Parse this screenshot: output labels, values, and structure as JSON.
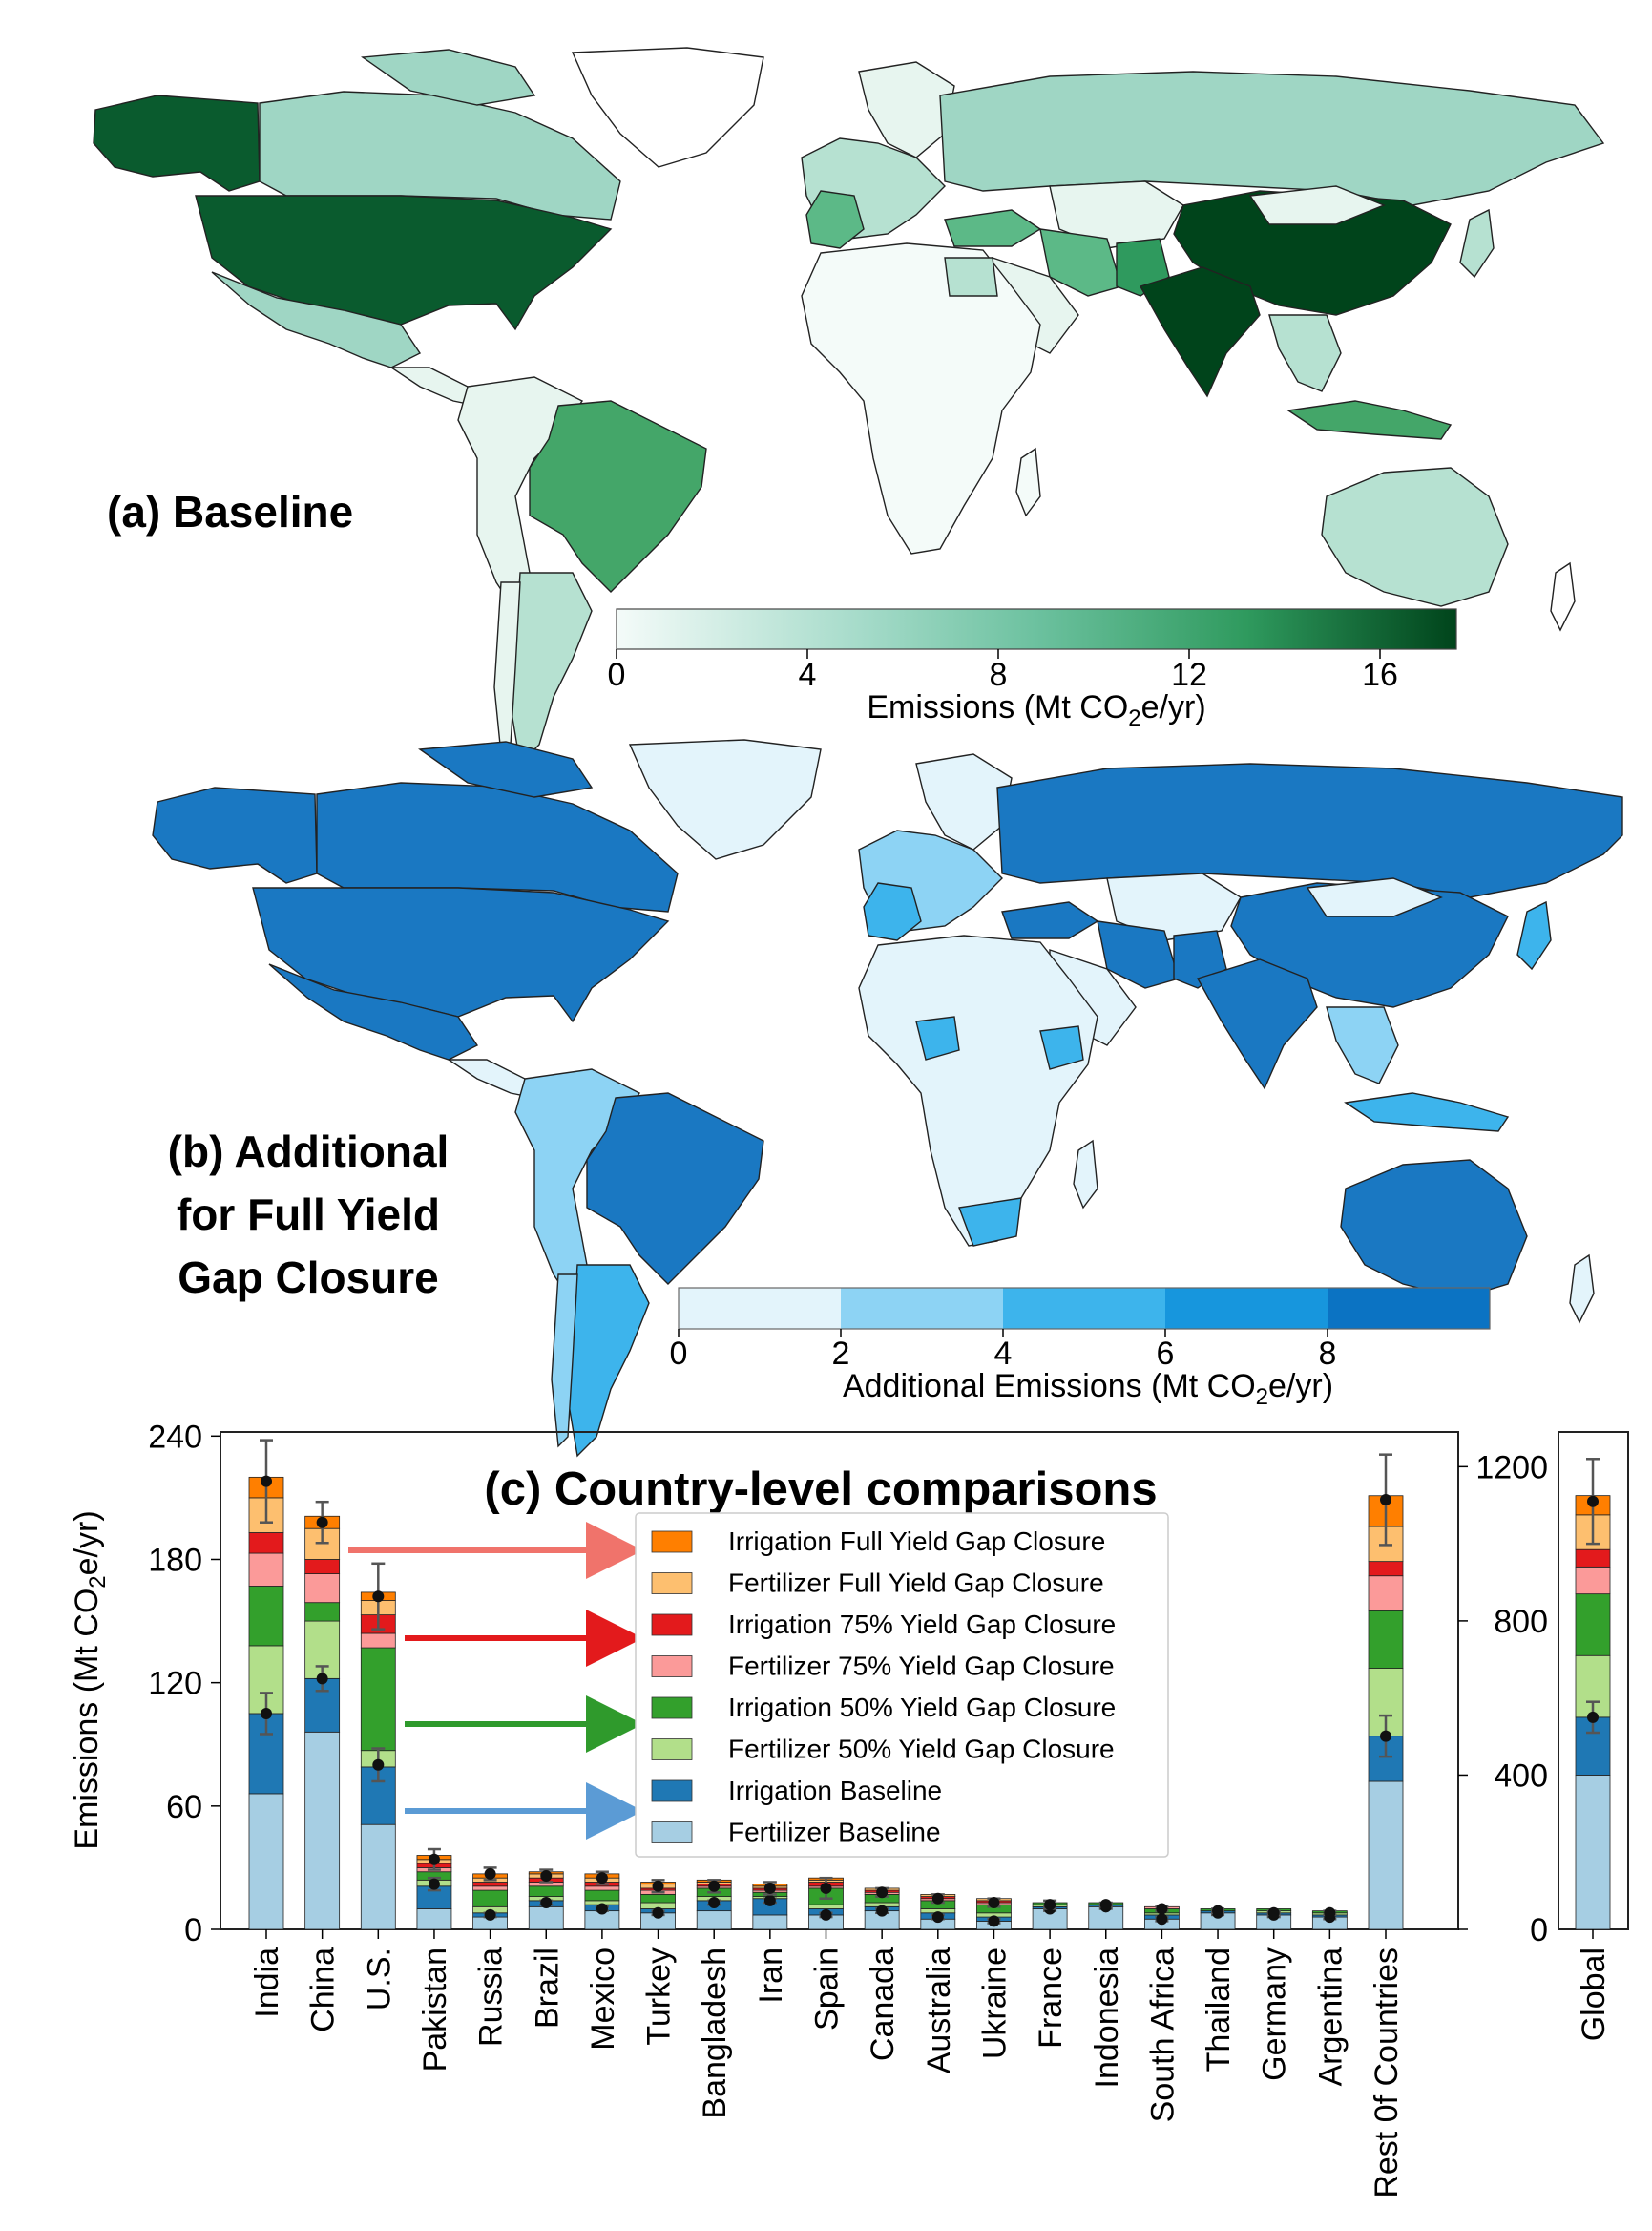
{
  "panel_a": {
    "label": "(a) Baseline",
    "colorbar": {
      "ticks": [
        "0",
        "4",
        "8",
        "12",
        "16"
      ],
      "label_main": "Emissions (Mt CO",
      "label_sub": "2",
      "label_tail": "e/yr)",
      "range": [
        0,
        17.6
      ],
      "colors": [
        "#f4fbf9",
        "#a3dac8",
        "#6cc19f",
        "#2f9a5e",
        "#00441b"
      ]
    }
  },
  "panel_b": {
    "label_lines": [
      "(b) Additional",
      "for Full Yield",
      "Gap Closure"
    ],
    "colorbar": {
      "ticks": [
        "0",
        "2",
        "4",
        "6",
        "8"
      ],
      "label_main": "Additional Emissions (Mt CO",
      "label_sub": "2",
      "label_tail": "e/yr)",
      "bins": [
        {
          "from": 0,
          "to": 2,
          "color": "#e3f4fb"
        },
        {
          "from": 2,
          "to": 4,
          "color": "#8dd3f4"
        },
        {
          "from": 4,
          "to": 6,
          "color": "#3db4ec"
        },
        {
          "from": 6,
          "to": 8,
          "color": "#1796dd"
        },
        {
          "from": 8,
          "to": 10,
          "color": "#0b73c3"
        }
      ]
    }
  },
  "chart_data": {
    "type": "bar",
    "title": "(c) Country-level comparisons",
    "ylabel_main": "Emissions (Mt CO",
    "ylabel_sub": "2",
    "ylabel_tail": "e/yr)",
    "ylim": [
      0,
      242
    ],
    "yticks": [
      "0",
      "60",
      "120",
      "180",
      "240"
    ],
    "categories": [
      "India",
      "China",
      "U.S.",
      "Pakistan",
      "Russia",
      "Brazil",
      "Mexico",
      "Turkey",
      "Bangladesh",
      "Iran",
      "Spain",
      "Canada",
      "Australia",
      "Ukraine",
      "France",
      "Indonesia",
      "South Africa",
      "Thailand",
      "Germany",
      "Argentina",
      "Rest 0f Countries"
    ],
    "series": [
      {
        "name": "Fertilizer Baseline",
        "color": "#a6cee3",
        "values": [
          66,
          96,
          51,
          10,
          6,
          11,
          9,
          8,
          9,
          7,
          7,
          9,
          5,
          4,
          10,
          11,
          5,
          8,
          7,
          6,
          72
        ]
      },
      {
        "name": "Irrigation Baseline",
        "color": "#1f78b4",
        "values": [
          39,
          26,
          28,
          11,
          2,
          3,
          3,
          2,
          5,
          8,
          3,
          2,
          3,
          2,
          1,
          1,
          2,
          1,
          1,
          1,
          22
        ]
      },
      {
        "name": "Fertilizer 50% Yield Gap Closure",
        "color": "#b2df8a",
        "values": [
          33,
          28,
          8,
          3,
          3,
          2,
          2,
          3,
          2,
          1,
          2,
          2,
          2,
          2,
          1,
          0,
          1,
          0,
          1,
          1,
          33
        ]
      },
      {
        "name": "Irrigation 50% Yield Gap Closure",
        "color": "#33a02c",
        "values": [
          29,
          9,
          50,
          4,
          8,
          5,
          5,
          4,
          4,
          2,
          8,
          4,
          4,
          4,
          1,
          1,
          2,
          1,
          1,
          1,
          28
        ]
      },
      {
        "name": "Fertilizer 75% Yield Gap Closure",
        "color": "#fb9a99",
        "values": [
          16,
          14,
          7,
          2,
          2,
          2,
          2,
          2,
          1,
          1,
          1,
          1,
          1,
          1,
          0,
          0,
          1,
          0,
          0,
          0,
          17
        ]
      },
      {
        "name": "Irrigation 75% Yield Gap Closure",
        "color": "#e31a1c",
        "values": [
          10,
          7,
          9,
          2,
          2,
          2,
          2,
          1,
          1,
          1,
          2,
          1,
          1,
          1,
          0,
          0,
          0,
          0,
          0,
          0,
          7
        ]
      },
      {
        "name": "Fertilizer Full Yield Gap Closure",
        "color": "#fdbf6f",
        "values": [
          17,
          15,
          7,
          2,
          2,
          2,
          2,
          2,
          1,
          1,
          1,
          1,
          1,
          1,
          0,
          0,
          0,
          0,
          0,
          0,
          17
        ]
      },
      {
        "name": "Irrigation Full Yield Gap Closure",
        "color": "#ff7f00",
        "values": [
          10,
          6,
          4,
          2,
          2,
          1,
          2,
          1,
          1,
          1,
          1,
          0,
          0,
          0,
          0,
          0,
          0,
          0,
          0,
          0,
          15
        ]
      }
    ],
    "markers_baseline": [
      105,
      122,
      80,
      22,
      7,
      13,
      10,
      8,
      13,
      14,
      7,
      9,
      6,
      4,
      10,
      11,
      5,
      8,
      7,
      6,
      94
    ],
    "markers_total": [
      218,
      198,
      162,
      34,
      27,
      26,
      25,
      21,
      21,
      20,
      20,
      18,
      15,
      13,
      12,
      12,
      10,
      9,
      8,
      8,
      209
    ],
    "err_baseline": [
      10,
      6,
      8,
      3,
      1,
      1,
      1,
      1,
      1,
      1,
      1,
      1,
      1,
      1,
      1,
      1,
      1,
      1,
      1,
      1,
      10
    ],
    "err_total": [
      20,
      10,
      16,
      5,
      3,
      3,
      3,
      3,
      3,
      3,
      5,
      2,
      2,
      2,
      2,
      1,
      1,
      1,
      1,
      1,
      22
    ],
    "legend_placement": "center",
    "global": {
      "category": "Global",
      "ylim": [
        0,
        1290
      ],
      "yticks": [
        "0",
        "400",
        "800",
        "1200"
      ],
      "values": [
        400,
        150,
        160,
        160,
        70,
        45,
        90,
        50
      ],
      "marker_baseline": 550,
      "marker_total": 1110,
      "err_baseline": 40,
      "err_total": 110
    }
  }
}
